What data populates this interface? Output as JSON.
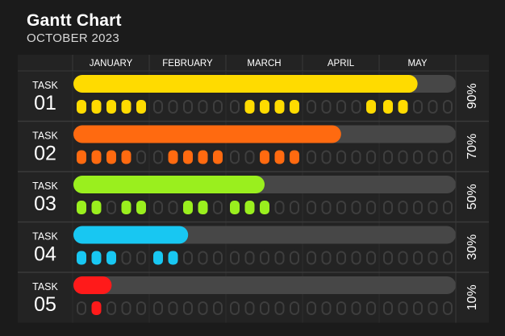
{
  "header": {
    "title": "Gantt Chart",
    "subtitle": "OCTOBER 2023"
  },
  "chart_data": {
    "type": "bar",
    "title": "Gantt Chart",
    "subtitle": "OCTOBER 2023",
    "months": [
      "JANUARY",
      "FEBRUARY",
      "MARCH",
      "APRIL",
      "MAY"
    ],
    "tasks": [
      {
        "label": "TASK",
        "number": "01",
        "progress": 90,
        "progress_label": "90%",
        "color": "#ffdb00",
        "pills": [
          [
            1,
            1,
            1,
            1,
            1
          ],
          [
            0,
            0,
            0,
            0,
            0
          ],
          [
            0,
            1,
            1,
            1,
            1
          ],
          [
            0,
            0,
            0,
            0,
            1
          ],
          [
            1,
            1,
            0,
            0,
            0
          ]
        ]
      },
      {
        "label": "TASK",
        "number": "02",
        "progress": 70,
        "progress_label": "70%",
        "color": "#ff6a10",
        "pills": [
          [
            1,
            1,
            1,
            1,
            0
          ],
          [
            0,
            1,
            1,
            1,
            1
          ],
          [
            0,
            0,
            1,
            1,
            1
          ],
          [
            0,
            0,
            0,
            0,
            0
          ],
          [
            0,
            0,
            0,
            0,
            0
          ]
        ]
      },
      {
        "label": "TASK",
        "number": "03",
        "progress": 50,
        "progress_label": "50%",
        "color": "#9aef1e",
        "pills": [
          [
            1,
            1,
            0,
            1,
            1
          ],
          [
            0,
            0,
            1,
            1,
            0
          ],
          [
            1,
            1,
            1,
            0,
            0
          ],
          [
            0,
            0,
            0,
            0,
            0
          ],
          [
            0,
            0,
            0,
            0,
            0
          ]
        ]
      },
      {
        "label": "TASK",
        "number": "04",
        "progress": 30,
        "progress_label": "30%",
        "color": "#18c7f2",
        "pills": [
          [
            1,
            1,
            1,
            0,
            0
          ],
          [
            1,
            1,
            0,
            0,
            0
          ],
          [
            0,
            0,
            0,
            0,
            0
          ],
          [
            0,
            0,
            0,
            0,
            0
          ],
          [
            0,
            0,
            0,
            0,
            0
          ]
        ]
      },
      {
        "label": "TASK",
        "number": "05",
        "progress": 10,
        "progress_label": "10%",
        "color": "#ff1a1a",
        "pills": [
          [
            0,
            1,
            0,
            0,
            0
          ],
          [
            0,
            0,
            0,
            0,
            0
          ],
          [
            0,
            0,
            0,
            0,
            0
          ],
          [
            0,
            0,
            0,
            0,
            0
          ],
          [
            0,
            0,
            0,
            0,
            0
          ]
        ]
      }
    ],
    "colors": {
      "background": "#1b1b1b",
      "panel": "#232323",
      "track": "#474747",
      "pill_outline": "#3e3e3e",
      "grid_line": "#3a3a3a"
    }
  }
}
